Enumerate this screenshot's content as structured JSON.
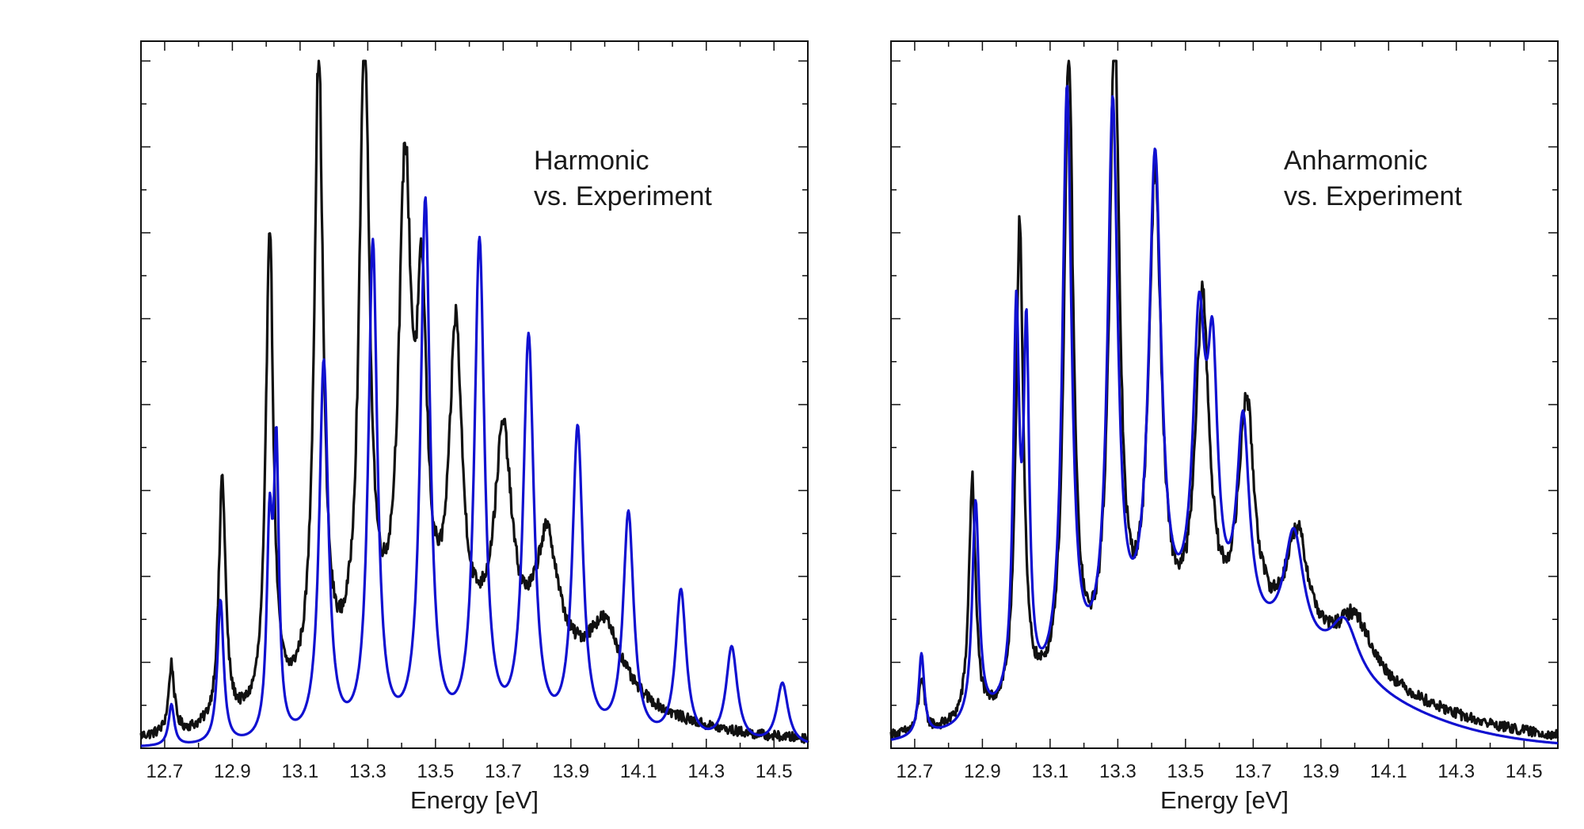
{
  "chart_data": [
    {
      "type": "line",
      "xlabel": "Energy [eV]",
      "ylabel": "",
      "xlim": [
        12.63,
        14.6
      ],
      "ylim": [
        0,
        1.0
      ],
      "x_ticks": [
        "12.7",
        "12.9",
        "13.1",
        "13.3",
        "13.5",
        "13.7",
        "13.9",
        "14.1",
        "14.3",
        "14.5"
      ],
      "annotation": [
        "Harmonic",
        "vs. Experiment"
      ],
      "grid": false,
      "series": [
        {
          "color": "#111111",
          "peaks": [
            {
              "x": 12.72,
              "h": 0.1,
              "w": 0.01
            },
            {
              "x": 12.87,
              "h": 0.36,
              "w": 0.012
            },
            {
              "x": 13.01,
              "h": 0.71,
              "w": 0.013
            },
            {
              "x": 13.155,
              "h": 0.92,
              "w": 0.016
            },
            {
              "x": 13.29,
              "h": 0.92,
              "w": 0.018
            },
            {
              "x": 13.41,
              "h": 0.68,
              "w": 0.022
            },
            {
              "x": 13.46,
              "h": 0.45,
              "w": 0.018
            },
            {
              "x": 13.56,
              "h": 0.45,
              "w": 0.022
            },
            {
              "x": 13.7,
              "h": 0.31,
              "w": 0.03
            },
            {
              "x": 13.83,
              "h": 0.18,
              "w": 0.04
            },
            {
              "x": 14.0,
              "h": 0.1,
              "w": 0.06
            }
          ],
          "baseline": 0.01,
          "tail": {
            "amp": 0.12,
            "center": 13.6,
            "width": 0.5
          }
        },
        {
          "color": "#1010d0",
          "peaks": [
            {
              "x": 12.72,
              "h": 0.06,
              "w": 0.01
            },
            {
              "x": 12.865,
              "h": 0.21,
              "w": 0.011
            },
            {
              "x": 13.01,
              "h": 0.29,
              "w": 0.01
            },
            {
              "x": 13.03,
              "h": 0.4,
              "w": 0.009
            },
            {
              "x": 13.17,
              "h": 0.55,
              "w": 0.016
            },
            {
              "x": 13.315,
              "h": 0.72,
              "w": 0.016
            },
            {
              "x": 13.47,
              "h": 0.78,
              "w": 0.017
            },
            {
              "x": 13.63,
              "h": 0.72,
              "w": 0.018
            },
            {
              "x": 13.775,
              "h": 0.58,
              "w": 0.019
            },
            {
              "x": 13.92,
              "h": 0.45,
              "w": 0.019
            },
            {
              "x": 14.07,
              "h": 0.33,
              "w": 0.019
            },
            {
              "x": 14.225,
              "h": 0.22,
              "w": 0.019
            },
            {
              "x": 14.375,
              "h": 0.14,
              "w": 0.02
            },
            {
              "x": 14.525,
              "h": 0.09,
              "w": 0.02
            }
          ],
          "baseline": 0.0,
          "tail": {
            "amp": 0.0,
            "center": 13.6,
            "width": 0.5
          }
        }
      ]
    },
    {
      "type": "line",
      "xlabel": "Energy [eV]",
      "ylabel": "",
      "xlim": [
        12.63,
        14.6
      ],
      "ylim": [
        0,
        1.0
      ],
      "x_ticks": [
        "12.7",
        "12.9",
        "13.1",
        "13.3",
        "13.5",
        "13.7",
        "13.9",
        "14.1",
        "14.3",
        "14.5"
      ],
      "annotation": [
        "Anharmonic",
        "vs. Experiment"
      ],
      "grid": false,
      "series": [
        {
          "color": "#111111",
          "peaks": [
            {
              "x": 12.72,
              "h": 0.08,
              "w": 0.01
            },
            {
              "x": 12.87,
              "h": 0.35,
              "w": 0.012
            },
            {
              "x": 13.01,
              "h": 0.71,
              "w": 0.013
            },
            {
              "x": 13.155,
              "h": 0.92,
              "w": 0.016
            },
            {
              "x": 13.29,
              "h": 0.92,
              "w": 0.018
            },
            {
              "x": 13.41,
              "h": 0.68,
              "w": 0.022
            },
            {
              "x": 13.55,
              "h": 0.48,
              "w": 0.024
            },
            {
              "x": 13.68,
              "h": 0.33,
              "w": 0.028
            },
            {
              "x": 13.83,
              "h": 0.16,
              "w": 0.04
            },
            {
              "x": 14.0,
              "h": 0.08,
              "w": 0.06
            }
          ],
          "baseline": 0.01,
          "tail": {
            "amp": 0.14,
            "center": 13.65,
            "width": 0.55
          }
        },
        {
          "color": "#1010d0",
          "peaks": [
            {
              "x": 12.72,
              "h": 0.12,
              "w": 0.01
            },
            {
              "x": 12.88,
              "h": 0.32,
              "w": 0.012
            },
            {
              "x": 13.0,
              "h": 0.55,
              "w": 0.011
            },
            {
              "x": 13.03,
              "h": 0.5,
              "w": 0.01
            },
            {
              "x": 13.15,
              "h": 0.86,
              "w": 0.016
            },
            {
              "x": 13.285,
              "h": 0.8,
              "w": 0.018
            },
            {
              "x": 13.41,
              "h": 0.7,
              "w": 0.022
            },
            {
              "x": 13.54,
              "h": 0.42,
              "w": 0.022
            },
            {
              "x": 13.58,
              "h": 0.34,
              "w": 0.018
            },
            {
              "x": 13.67,
              "h": 0.3,
              "w": 0.022
            },
            {
              "x": 13.82,
              "h": 0.17,
              "w": 0.035
            },
            {
              "x": 13.97,
              "h": 0.08,
              "w": 0.05
            }
          ],
          "baseline": 0.0,
          "tail": {
            "amp": 0.15,
            "center": 13.6,
            "width": 0.55
          }
        }
      ]
    }
  ]
}
